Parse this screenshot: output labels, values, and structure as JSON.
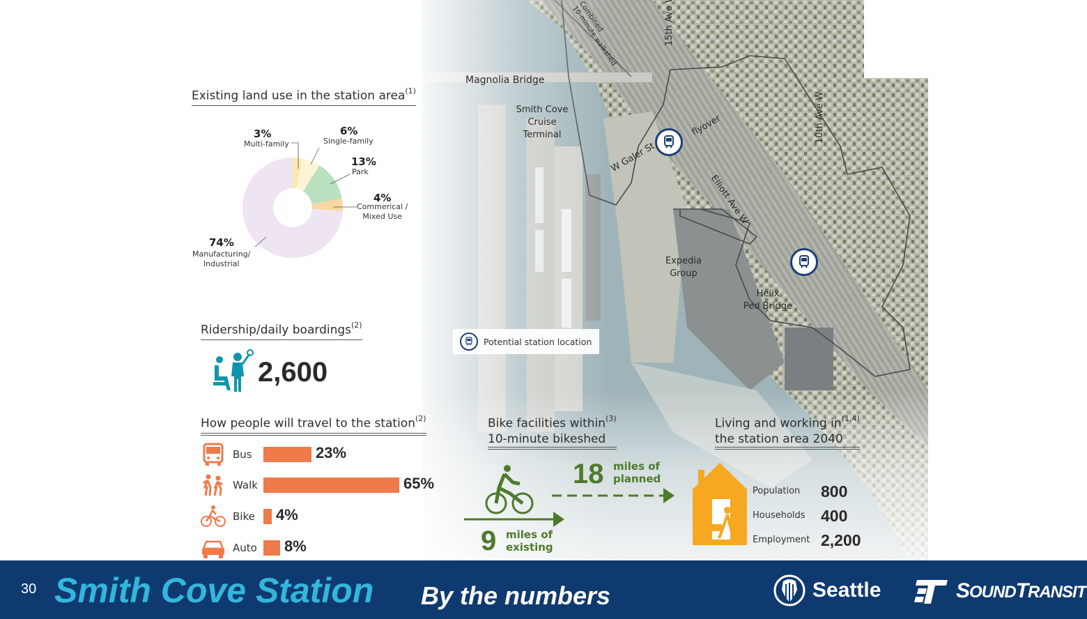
{
  "land_use": {
    "title": "Existing land use in the station area",
    "ref": "(1)",
    "slices": [
      {
        "pct": "3%",
        "label": "Multi-family",
        "value": 3,
        "color": "#fbe8b3"
      },
      {
        "pct": "6%",
        "label": "Single-family",
        "value": 6,
        "color": "#fdf4d6"
      },
      {
        "pct": "13%",
        "label": "Park",
        "value": 13,
        "color": "#b9e0bf"
      },
      {
        "pct": "4%",
        "label_line1": "Commerical /",
        "label_line2": "Mixed Use",
        "value": 4,
        "color": "#f9d7a0"
      },
      {
        "pct": "74%",
        "label_line1": "Manufacturing/",
        "label_line2": "Industrial",
        "value": 74,
        "color": "#efe4f1"
      }
    ]
  },
  "ridership": {
    "title": "Ridership/daily boardings",
    "ref": "(2)",
    "value": "2,600",
    "icon": "passenger-icon"
  },
  "travel": {
    "title": "How people will travel to the station",
    "ref": "(2)",
    "modes": [
      {
        "label": "Bus",
        "pct": "23%",
        "value": 23,
        "icon": "bus-icon"
      },
      {
        "label": "Walk",
        "pct": "65%",
        "value": 65,
        "icon": "walk-icon"
      },
      {
        "label": "Bike",
        "pct": "4%",
        "value": 4,
        "icon": "bike-icon"
      },
      {
        "label": "Auto",
        "pct": "8%",
        "value": 8,
        "icon": "car-icon"
      }
    ],
    "bar_color": "#ef7a4a"
  },
  "bike": {
    "title_line1": "Bike facilities within",
    "title_line2": "10-minute bikeshed",
    "ref": "(3)",
    "planned_value": "18",
    "planned_line1": "miles of",
    "planned_line2": "planned",
    "existing_value": "9",
    "existing_line1": "miles of",
    "existing_line2": "existing",
    "color": "#4e7a2b"
  },
  "living": {
    "title_line1": "Living and working in",
    "title_line2": "the station area 2040",
    "ref": "(1,4)",
    "rows": [
      {
        "label": "Population",
        "value": "800"
      },
      {
        "label": "Households",
        "value": "400"
      },
      {
        "label": "Employment",
        "value": "2,200"
      }
    ],
    "color": "#f6a821"
  },
  "map": {
    "labels": {
      "magnolia_bridge": "Magnolia Bridge",
      "smith_cove_1": "Smith Cove",
      "smith_cove_2": "Cruise",
      "smith_cove_3": "Terminal",
      "galer": "W Galer St",
      "flyover": "flyover",
      "elliott": "Elliott Ave W",
      "fifteenth": "15th Ave W",
      "tenth": "10th Ave W",
      "expedia_1": "Expedia",
      "expedia_2": "Group",
      "helix_1": "Helix",
      "helix_2": "Ped Bridge",
      "walkshed_1": "Combined",
      "walkshed_2": "10-minute walkshed"
    },
    "legend": "Potential station location"
  },
  "footer": {
    "page_number": "30",
    "title": "Smith Cove Station",
    "subtitle": "By the numbers",
    "logo_seattle": "Seattle",
    "logo_st_1": "S",
    "logo_st_2": "OUND",
    "logo_st_3": "T",
    "logo_st_4": "RANSIT",
    "color": "#0f3a70",
    "title_color": "#33b6dd"
  }
}
